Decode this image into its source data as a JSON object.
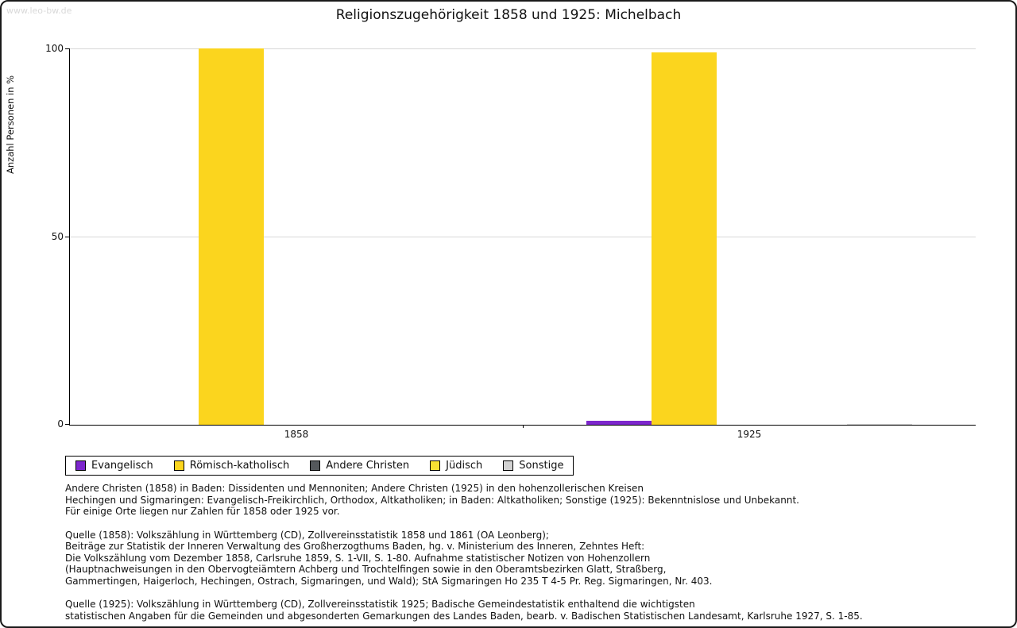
{
  "watermark": "www.leo-bw.de",
  "title": "Religionszugehörigkeit 1858 und 1925: Michelbach",
  "chart_data": {
    "type": "bar",
    "title": "Religionszugehörigkeit 1858 und 1925: Michelbach",
    "xlabel": "",
    "ylabel": "Anzahl Personen in %",
    "ylim": [
      0,
      100
    ],
    "yticks": [
      0,
      50,
      100
    ],
    "grid": true,
    "legend_position": "bottom-left",
    "categories": [
      "1858",
      "1925"
    ],
    "series": [
      {
        "name": "Evangelisch",
        "color": "#7d26cd",
        "values": [
          0,
          1
        ]
      },
      {
        "name": "Römisch-katholisch",
        "color": "#fbd51e",
        "values": [
          100,
          99
        ]
      },
      {
        "name": "Andere Christen",
        "color": "#54585c",
        "values": [
          0,
          0
        ]
      },
      {
        "name": "Jüdisch",
        "color": "#f6e133",
        "values": [
          0,
          0
        ]
      },
      {
        "name": "Sonstige",
        "color": "#d2d2d2",
        "values": [
          0,
          0.2
        ]
      }
    ]
  },
  "footnotes": [
    [
      "Andere Christen (1858) in Baden: Dissidenten und Mennoniten; Andere Christen (1925) in den hohenzollerischen Kreisen",
      "Hechingen und Sigmaringen: Evangelisch-Freikirchlich, Orthodox, Altkatholiken; in Baden: Altkatholiken; Sonstige (1925): Bekenntnislose und Unbekannt.",
      "Für einige Orte liegen nur Zahlen für 1858 oder 1925 vor."
    ],
    [
      "Quelle (1858): Volkszählung in Württemberg (CD), Zollvereinsstatistik 1858 und 1861 (OA Leonberg);",
      "Beiträge zur Statistik der Inneren Verwaltung des Großherzogthums Baden, hg. v. Ministerium des Inneren, Zehntes Heft:",
      "Die Volkszählung vom Dezember 1858, Carlsruhe 1859, S. 1-VII, S. 1-80. Aufnahme statistischer Notizen von Hohenzollern",
      "(Hauptnachweisungen in den Obervogteiämtern Achberg und Trochtelfingen sowie in den Oberamtsbezirken Glatt, Straßberg,",
      "Gammertingen, Haigerloch, Hechingen, Ostrach, Sigmaringen, und Wald); StA Sigmaringen Ho 235 T 4-5 Pr. Reg. Sigmaringen, Nr. 403."
    ],
    [
      "Quelle (1925): Volkszählung in Württemberg (CD), Zollvereinsstatistik 1925; Badische Gemeindestatistik enthaltend die wichtigsten",
      "statistischen Angaben für die Gemeinden und abgesonderten Gemarkungen des Landes Baden, bearb. v. Badischen Statistischen Landesamt, Karlsruhe 1927, S. 1-85."
    ]
  ]
}
